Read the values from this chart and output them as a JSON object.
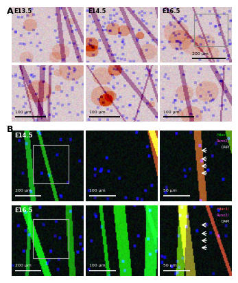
{
  "panel_A_label": "A",
  "panel_B_label": "B",
  "panel_A_row1_labels": [
    "E13.5",
    "E14.5",
    "E16.5"
  ],
  "panel_B_row1_label": "E14.5",
  "panel_B_row2_label": "E16.5",
  "panel_B_row1_scalebars": [
    "200 μm",
    "100 μm",
    "50 μm"
  ],
  "panel_B_row2_scalebars": [
    "200 μm",
    "100 μm",
    "50 μm"
  ],
  "figure_bg": "#ffffff",
  "label_fontsize": 7,
  "scalebar_fontsize": 4.5
}
